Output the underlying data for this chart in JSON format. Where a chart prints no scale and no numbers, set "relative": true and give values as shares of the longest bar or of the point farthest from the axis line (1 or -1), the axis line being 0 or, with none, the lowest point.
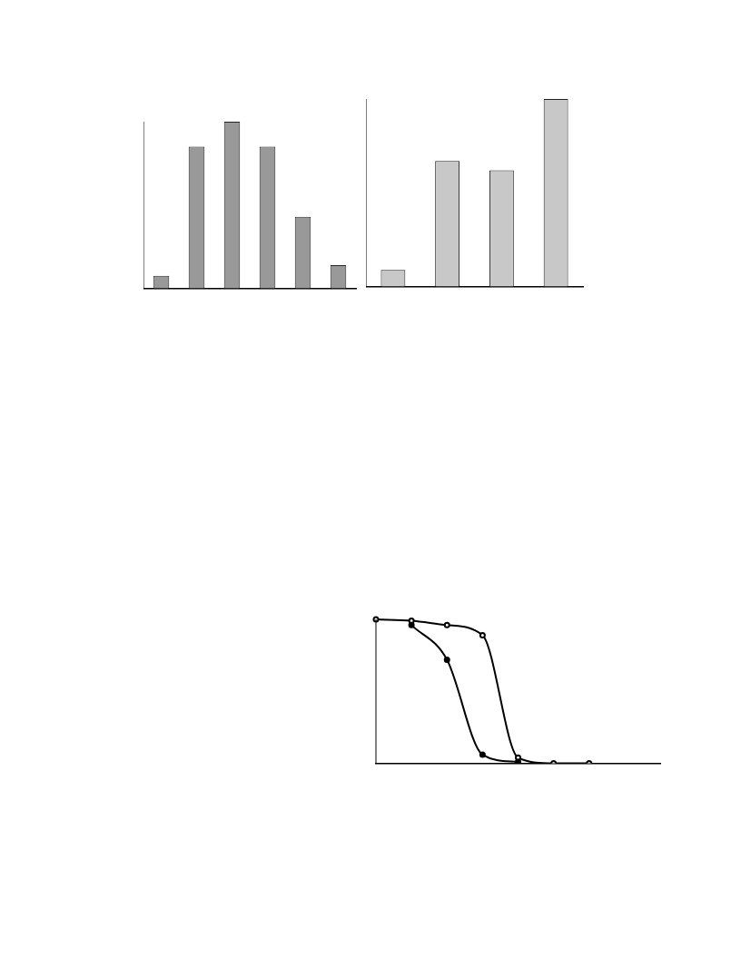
{
  "chart_data": [
    {
      "type": "bar",
      "relative": true,
      "grid": false,
      "legend": false,
      "categories": [
        null,
        null,
        null,
        null,
        null,
        null
      ],
      "values": [
        0.076,
        0.85,
        1,
        0.85,
        0.43,
        0.14
      ],
      "color": "#999999"
    },
    {
      "type": "bar",
      "relative": true,
      "grid": false,
      "legend": false,
      "categories": [
        null,
        null,
        null,
        null
      ],
      "values": [
        0.089,
        0.67,
        0.62,
        1
      ],
      "color": "#c8c8c8"
    },
    {
      "type": "line",
      "relative": true,
      "grid": false,
      "legend": false,
      "marker": "circle",
      "line_style": "solid",
      "categories": [
        null,
        null,
        null,
        null,
        null,
        null,
        null,
        null,
        null
      ],
      "series": [
        {
          "color": "#000000",
          "values": [
            null,
            0.96,
            0.72,
            0.06,
            0.01,
            null,
            null,
            null,
            null
          ]
        },
        {
          "color": "#000000",
          "values": [
            1,
            0.99,
            0.96,
            0.89,
            0.04,
            0,
            0,
            null,
            null
          ]
        }
      ]
    }
  ]
}
